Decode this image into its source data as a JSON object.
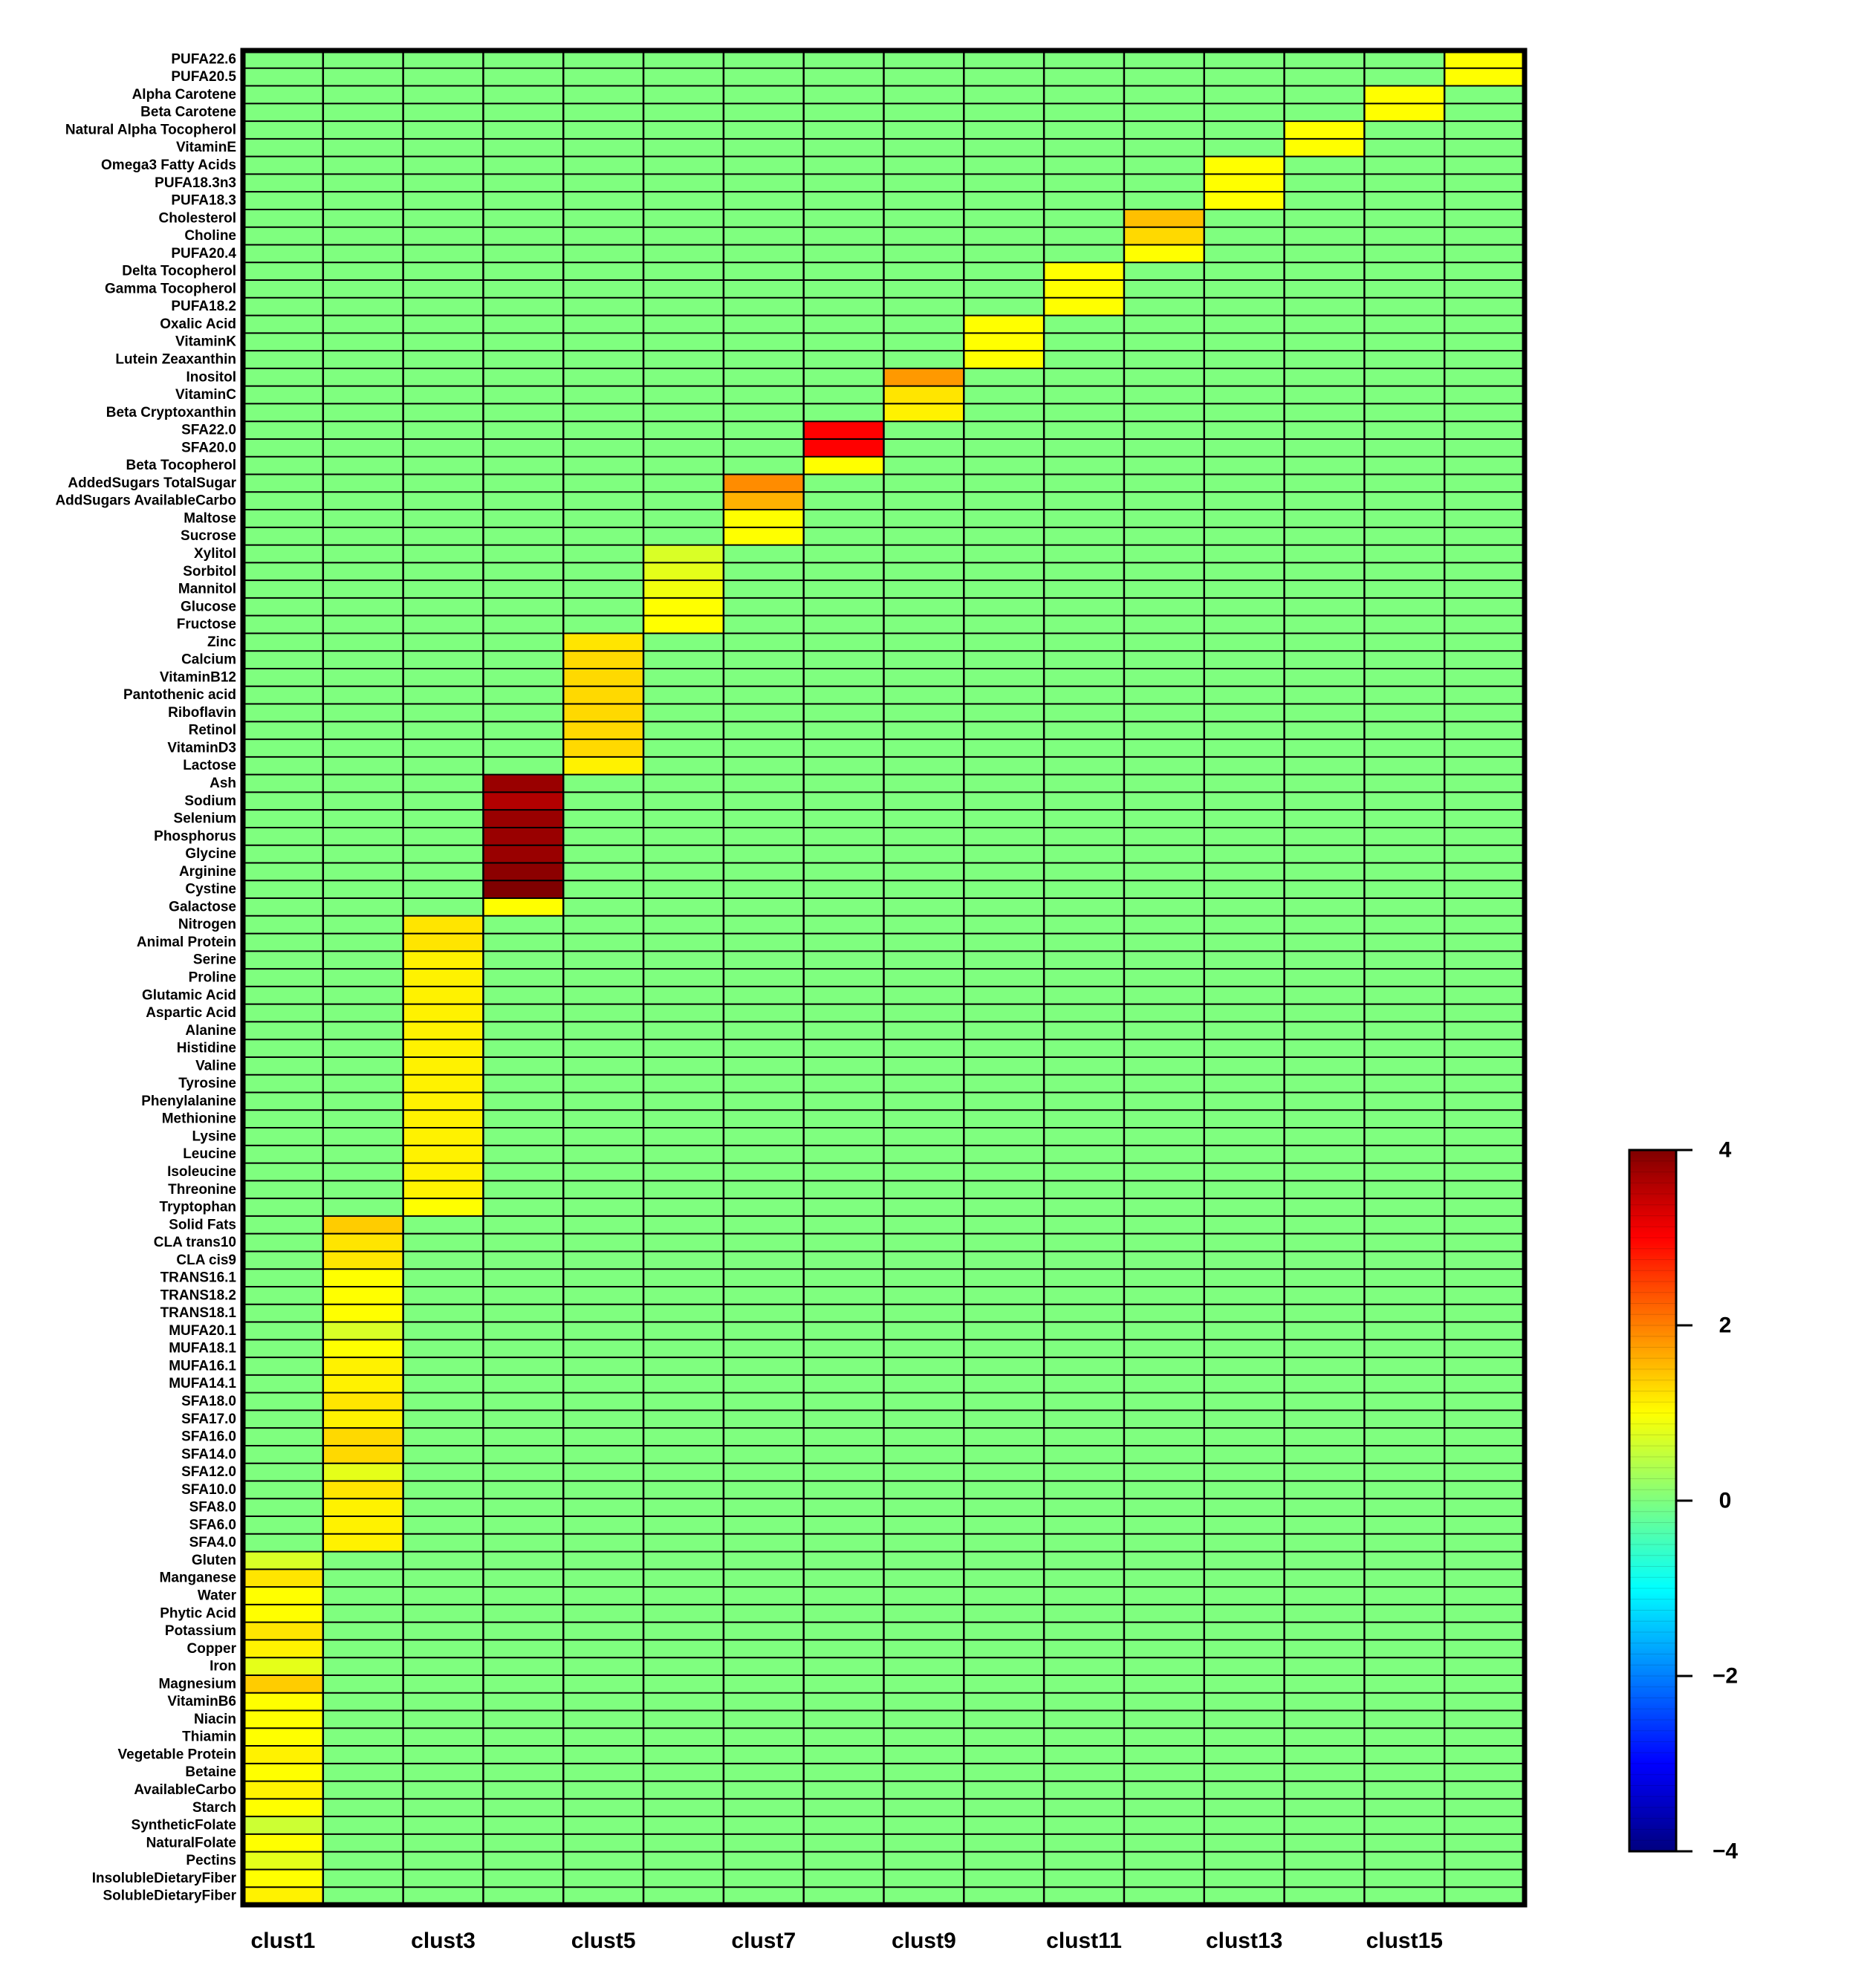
{
  "chart_data": {
    "type": "heatmap",
    "x_tick_labels": [
      "clust1",
      "clust3",
      "clust5",
      "clust7",
      "clust9",
      "clust11",
      "clust13",
      "clust15"
    ],
    "columns": 16,
    "rows": [
      {
        "label": "PUFA22.6",
        "col": 16,
        "value": 1.0
      },
      {
        "label": "PUFA20.5",
        "col": 16,
        "value": 1.0
      },
      {
        "label": "Alpha Carotene",
        "col": 15,
        "value": 1.0
      },
      {
        "label": "Beta Carotene",
        "col": 15,
        "value": 1.0
      },
      {
        "label": "Natural Alpha Tocopherol",
        "col": 14,
        "value": 1.0
      },
      {
        "label": "VitaminE",
        "col": 14,
        "value": 1.0
      },
      {
        "label": "Omega3 Fatty Acids",
        "col": 13,
        "value": 1.0
      },
      {
        "label": "PUFA18.3n3",
        "col": 13,
        "value": 1.0
      },
      {
        "label": "PUFA18.3",
        "col": 13,
        "value": 1.0
      },
      {
        "label": "Cholesterol",
        "col": 12,
        "value": 1.5
      },
      {
        "label": "Choline",
        "col": 12,
        "value": 1.3
      },
      {
        "label": "PUFA20.4",
        "col": 12,
        "value": 1.0
      },
      {
        "label": "Delta Tocopherol",
        "col": 11,
        "value": 1.0
      },
      {
        "label": "Gamma Tocopherol",
        "col": 11,
        "value": 1.0
      },
      {
        "label": "PUFA18.2",
        "col": 11,
        "value": 1.0
      },
      {
        "label": "Oxalic Acid",
        "col": 10,
        "value": 1.0
      },
      {
        "label": "VitaminK",
        "col": 10,
        "value": 1.0
      },
      {
        "label": "Lutein Zeaxanthin",
        "col": 10,
        "value": 1.0
      },
      {
        "label": "Inositol",
        "col": 9,
        "value": 1.8
      },
      {
        "label": "VitaminC",
        "col": 9,
        "value": 1.2
      },
      {
        "label": "Beta Cryptoxanthin",
        "col": 9,
        "value": 1.1
      },
      {
        "label": "SFA22.0",
        "col": 8,
        "value": 3.0
      },
      {
        "label": "SFA20.0",
        "col": 8,
        "value": 3.0
      },
      {
        "label": "Beta Tocopherol",
        "col": 8,
        "value": 1.0
      },
      {
        "label": "AddedSugars TotalSugar",
        "col": 7,
        "value": 1.9
      },
      {
        "label": "AddSugars AvailableCarbo",
        "col": 7,
        "value": 1.6
      },
      {
        "label": "Maltose",
        "col": 7,
        "value": 1.0
      },
      {
        "label": "Sucrose",
        "col": 7,
        "value": 1.0
      },
      {
        "label": "Xylitol",
        "col": 6,
        "value": 0.7
      },
      {
        "label": "Sorbitol",
        "col": 6,
        "value": 0.8
      },
      {
        "label": "Mannitol",
        "col": 6,
        "value": 0.9
      },
      {
        "label": "Glucose",
        "col": 6,
        "value": 1.0
      },
      {
        "label": "Fructose",
        "col": 6,
        "value": 1.0
      },
      {
        "label": "Zinc",
        "col": 5,
        "value": 1.2
      },
      {
        "label": "Calcium",
        "col": 5,
        "value": 1.3
      },
      {
        "label": "VitaminB12",
        "col": 5,
        "value": 1.3
      },
      {
        "label": "Pantothenic acid",
        "col": 5,
        "value": 1.3
      },
      {
        "label": "Riboflavin",
        "col": 5,
        "value": 1.3
      },
      {
        "label": "Retinol",
        "col": 5,
        "value": 1.3
      },
      {
        "label": "VitaminD3",
        "col": 5,
        "value": 1.3
      },
      {
        "label": "Lactose",
        "col": 5,
        "value": 1.1
      },
      {
        "label": "Ash",
        "col": 4,
        "value": 3.8
      },
      {
        "label": "Sodium",
        "col": 4,
        "value": 3.6
      },
      {
        "label": "Selenium",
        "col": 4,
        "value": 3.8
      },
      {
        "label": "Phosphorus",
        "col": 4,
        "value": 3.8
      },
      {
        "label": "Glycine",
        "col": 4,
        "value": 3.8
      },
      {
        "label": "Arginine",
        "col": 4,
        "value": 3.9
      },
      {
        "label": "Cystine",
        "col": 4,
        "value": 4.0
      },
      {
        "label": "Galactose",
        "col": 4,
        "value": 1.0
      },
      {
        "label": "Nitrogen",
        "col": 3,
        "value": 1.2
      },
      {
        "label": "Animal Protein",
        "col": 3,
        "value": 1.2
      },
      {
        "label": "Serine",
        "col": 3,
        "value": 1.1
      },
      {
        "label": "Proline",
        "col": 3,
        "value": 1.1
      },
      {
        "label": "Glutamic Acid",
        "col": 3,
        "value": 1.1
      },
      {
        "label": "Aspartic Acid",
        "col": 3,
        "value": 1.1
      },
      {
        "label": "Alanine",
        "col": 3,
        "value": 1.1
      },
      {
        "label": "Histidine",
        "col": 3,
        "value": 1.1
      },
      {
        "label": "Valine",
        "col": 3,
        "value": 1.1
      },
      {
        "label": "Tyrosine",
        "col": 3,
        "value": 1.1
      },
      {
        "label": "Phenylalanine",
        "col": 3,
        "value": 1.1
      },
      {
        "label": "Methionine",
        "col": 3,
        "value": 1.1
      },
      {
        "label": "Lysine",
        "col": 3,
        "value": 1.1
      },
      {
        "label": "Leucine",
        "col": 3,
        "value": 1.1
      },
      {
        "label": "Isoleucine",
        "col": 3,
        "value": 1.1
      },
      {
        "label": "Threonine",
        "col": 3,
        "value": 1.1
      },
      {
        "label": "Tryptophan",
        "col": 3,
        "value": 1.0
      },
      {
        "label": "Solid Fats",
        "col": 2,
        "value": 1.4
      },
      {
        "label": "CLA trans10",
        "col": 2,
        "value": 1.2
      },
      {
        "label": "CLA cis9",
        "col": 2,
        "value": 1.2
      },
      {
        "label": "TRANS16.1",
        "col": 2,
        "value": 1.0
      },
      {
        "label": "TRANS18.2",
        "col": 2,
        "value": 1.0
      },
      {
        "label": "TRANS18.1",
        "col": 2,
        "value": 1.0
      },
      {
        "label": "MUFA20.1",
        "col": 2,
        "value": 0.7
      },
      {
        "label": "MUFA18.1",
        "col": 2,
        "value": 1.0
      },
      {
        "label": "MUFA16.1",
        "col": 2,
        "value": 1.1
      },
      {
        "label": "MUFA14.1",
        "col": 2,
        "value": 1.1
      },
      {
        "label": "SFA18.0",
        "col": 2,
        "value": 1.2
      },
      {
        "label": "SFA17.0",
        "col": 2,
        "value": 1.1
      },
      {
        "label": "SFA16.0",
        "col": 2,
        "value": 1.3
      },
      {
        "label": "SFA14.0",
        "col": 2,
        "value": 1.3
      },
      {
        "label": "SFA12.0",
        "col": 2,
        "value": 0.8
      },
      {
        "label": "SFA10.0",
        "col": 2,
        "value": 1.2
      },
      {
        "label": "SFA8.0",
        "col": 2,
        "value": 1.1
      },
      {
        "label": "SFA6.0",
        "col": 2,
        "value": 1.1
      },
      {
        "label": "SFA4.0",
        "col": 2,
        "value": 1.1
      },
      {
        "label": "Gluten",
        "col": 1,
        "value": 0.7
      },
      {
        "label": "Manganese",
        "col": 1,
        "value": 1.2
      },
      {
        "label": "Water",
        "col": 1,
        "value": 1.0
      },
      {
        "label": "Phytic Acid",
        "col": 1,
        "value": 1.0
      },
      {
        "label": "Potassium",
        "col": 1,
        "value": 1.2
      },
      {
        "label": "Copper",
        "col": 1,
        "value": 1.1
      },
      {
        "label": "Iron",
        "col": 1,
        "value": 0.8
      },
      {
        "label": "Magnesium",
        "col": 1,
        "value": 1.4
      },
      {
        "label": "VitaminB6",
        "col": 1,
        "value": 1.0
      },
      {
        "label": "Niacin",
        "col": 1,
        "value": 1.0
      },
      {
        "label": "Thiamin",
        "col": 1,
        "value": 1.0
      },
      {
        "label": "Vegetable Protein",
        "col": 1,
        "value": 1.1
      },
      {
        "label": "Betaine",
        "col": 1,
        "value": 1.0
      },
      {
        "label": "AvailableCarbo",
        "col": 1,
        "value": 1.1
      },
      {
        "label": "Starch",
        "col": 1,
        "value": 1.0
      },
      {
        "label": "SyntheticFolate",
        "col": 1,
        "value": 0.6
      },
      {
        "label": "NaturalFolate",
        "col": 1,
        "value": 1.0
      },
      {
        "label": "Pectins",
        "col": 1,
        "value": 0.8
      },
      {
        "label": "InsolubleDietaryFiber",
        "col": 1,
        "value": 1.0
      },
      {
        "label": "SolubleDietaryFiber",
        "col": 1,
        "value": 1.1
      }
    ],
    "background_value": 0,
    "color_scale": {
      "min": -4,
      "max": 4,
      "ticks": [
        4,
        2,
        0,
        -2,
        -4
      ],
      "tick_labels": [
        "4",
        "2",
        "0",
        "−2",
        "−4"
      ],
      "stops": [
        {
          "value": -4,
          "color": "#00007F"
        },
        {
          "value": -3,
          "color": "#0000FF"
        },
        {
          "value": -2,
          "color": "#007FFF"
        },
        {
          "value": -1,
          "color": "#00FFFF"
        },
        {
          "value": 0,
          "color": "#7FFF7F"
        },
        {
          "value": 1,
          "color": "#FFFF00"
        },
        {
          "value": 2,
          "color": "#FF7F00"
        },
        {
          "value": 3,
          "color": "#FF0000"
        },
        {
          "value": 4,
          "color": "#7F0000"
        }
      ]
    },
    "grid": true,
    "legend": "right"
  }
}
